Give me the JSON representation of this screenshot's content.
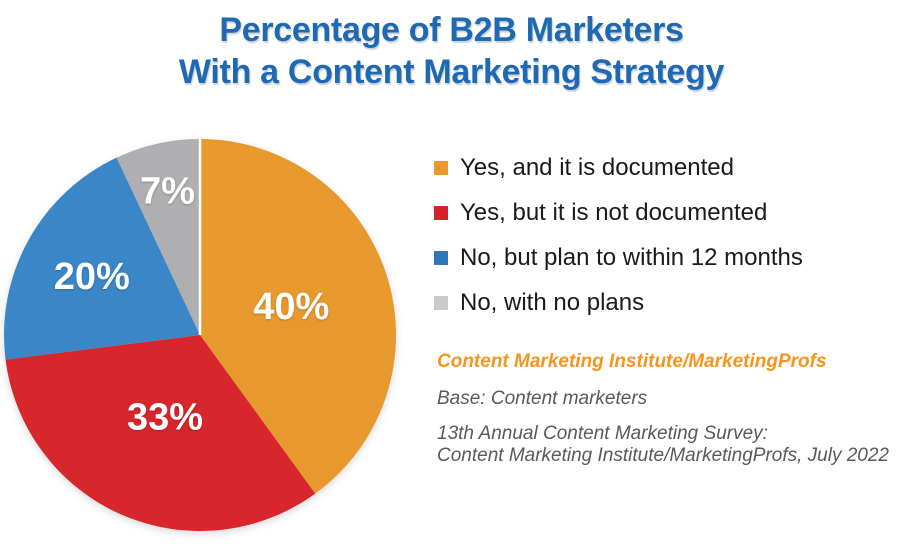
{
  "title": {
    "line1": "Percentage of B2B Marketers",
    "line2": "With a Content Marketing Strategy",
    "color": "#1E69B2"
  },
  "chart_data": {
    "type": "pie",
    "title": "Percentage of B2B Marketers With a Content Marketing Strategy",
    "categories": [
      "Yes, and it is documented",
      "Yes, but it is not documented",
      "No, but plan to within 12 months",
      "No, with no plans"
    ],
    "values": [
      40,
      33,
      20,
      7
    ],
    "slices": [
      {
        "label": "Yes, and it is documented",
        "value": 40,
        "color": "#E8992E",
        "label_r": 0.49
      },
      {
        "label": "Yes, but it is not documented",
        "value": 33,
        "color": "#D7262C",
        "label_r": 0.45
      },
      {
        "label": "No, but plan to within 12 months",
        "value": 20,
        "color": "#3B86C7",
        "label_r": 0.63
      },
      {
        "label": "No, with no plans",
        "value": 7,
        "color": "#AFAFB1",
        "label_r": 0.76
      }
    ],
    "start_angle_deg": 0,
    "direction": "clockwise",
    "value_suffix": "%",
    "legend_position": "right",
    "divider_color": "#FFFFFF"
  },
  "legend": {
    "items": [
      {
        "label": "Yes, and it is documented",
        "color": "#E8992E"
      },
      {
        "label": "Yes, but it is not documented",
        "color": "#D2232A"
      },
      {
        "label": "No, but plan to within 12 months",
        "color": "#2E78B8"
      },
      {
        "label": "No, with no plans",
        "color": "#C9CACC"
      }
    ]
  },
  "source": {
    "brand": "Content Marketing Institute/MarketingProfs",
    "brand_color": "#F7941E",
    "base": "Base: Content marketers",
    "survey_line1": "13th Annual Content Marketing Survey:",
    "survey_line2": "Content Marketing Institute/MarketingProfs, July 2022",
    "text_color": "#58595B"
  }
}
